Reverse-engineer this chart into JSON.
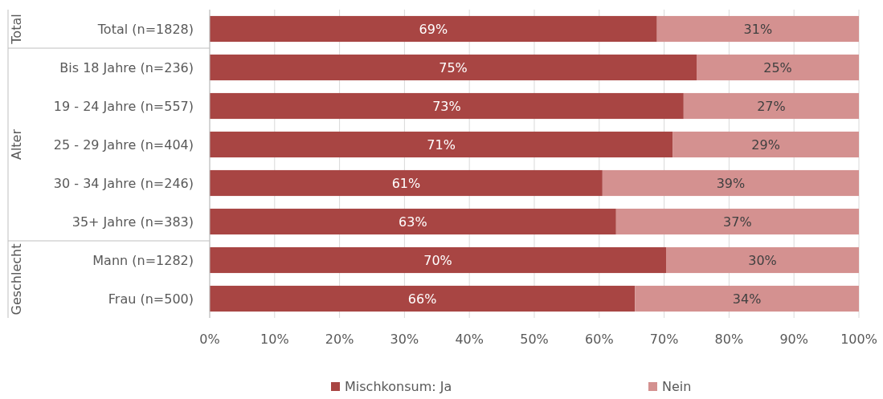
{
  "chart_data": {
    "type": "bar",
    "orientation": "horizontal",
    "stacked": true,
    "categories": [
      "Total (n=1828)",
      "Bis 18 Jahre (n=236)",
      "19 - 24 Jahre (n=557)",
      "25 - 29 Jahre (n=404)",
      "30 - 34 Jahre (n=246)",
      "35+ Jahre (n=383)",
      "Mann (n=1282)",
      "Frau (n=500)"
    ],
    "series": [
      {
        "name": "Mischkonsum: Ja",
        "color": "#a84543",
        "values": [
          68.9,
          75,
          73,
          71.3,
          60.5,
          62.6,
          70.3,
          65.5
        ],
        "value_labels": [
          "69%",
          "75%",
          "73%",
          "71%",
          "61%",
          "63%",
          "70%",
          "66%"
        ]
      },
      {
        "name": "Nein",
        "color": "#d49190",
        "values": [
          31.1,
          25,
          27,
          28.7,
          39.5,
          37.4,
          29.7,
          34.5
        ],
        "value_labels": [
          "31%",
          "25%",
          "27%",
          "29%",
          "39%",
          "37%",
          "30%",
          "34%"
        ]
      }
    ],
    "xlim": [
      0,
      100
    ],
    "xticks": [
      {
        "value": 0,
        "label": "0%"
      },
      {
        "value": 10,
        "label": "10%"
      },
      {
        "value": 20,
        "label": "20%"
      },
      {
        "value": 30,
        "label": "30%"
      },
      {
        "value": 40,
        "label": "40%"
      },
      {
        "value": 50,
        "label": "50%"
      },
      {
        "value": 60,
        "label": "60%"
      },
      {
        "value": 70,
        "label": "70%"
      },
      {
        "value": 80,
        "label": "80%"
      },
      {
        "value": 90,
        "label": "90%"
      },
      {
        "value": 100,
        "label": "100%"
      }
    ],
    "grid": "x",
    "legend": "bottom",
    "annotations": [
      "Total",
      "Alter",
      "Geschlecht"
    ]
  }
}
